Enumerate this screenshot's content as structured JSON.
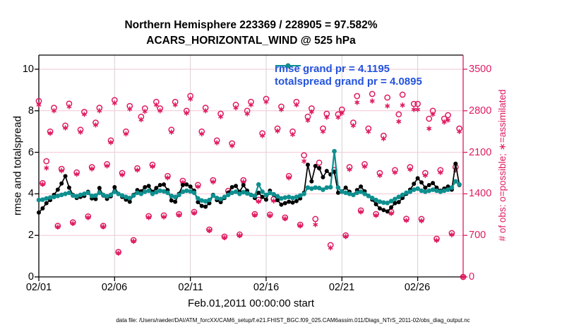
{
  "title": {
    "line1": "Northern Hemisphere 223369 / 228905 = 97.582%",
    "line2": "ACARS_HORIZONTAL_WIND @ 525 hPa"
  },
  "legend": {
    "text_color": "#2353dd",
    "items": [
      {
        "label": "rmse grand pr = 4.1195",
        "color": "#000000"
      },
      {
        "label": "totalspread grand pr = 4.0895",
        "color": "#0e8f8f"
      }
    ]
  },
  "axes": {
    "left": {
      "label": "rmse and totalspread",
      "ticks": [
        "0",
        "2",
        "4",
        "6",
        "8",
        "10"
      ],
      "tick_values": [
        0,
        2,
        4,
        6,
        8,
        10
      ],
      "color": "#000000"
    },
    "right": {
      "label": "# of obs: o=possible; ∗=assimilated",
      "ticks": [
        "0",
        "700",
        "1400",
        "2100",
        "2800",
        "3500"
      ],
      "tick_values": [
        0,
        700,
        1400,
        2100,
        2800,
        3500
      ],
      "color": "#df1a60"
    },
    "x": {
      "label": "Feb.01,2011 00:00:00 start",
      "ticks": [
        "02/01",
        "02/06",
        "02/11",
        "02/16",
        "02/21",
        "02/26"
      ],
      "tick_days": [
        0,
        5,
        10,
        15,
        20,
        25
      ],
      "range_days": [
        0,
        28
      ]
    }
  },
  "footer": "data file: /Users/raeder/DAI/ATM_forcXX/CAM6_setup/f.e21.FHIST_BGC.f09_025.CAM6assim.011/Diags_NTrS_2011-02/obs_diag_output.nc",
  "chart_data": {
    "type": "line",
    "title": "Northern Hemisphere 223369 / 228905 = 97.582% | ACARS_HORIZONTAL_WIND @ 525 hPa",
    "xlabel": "Feb.01,2011 00:00:00 start",
    "ylabel_left": "rmse and totalspread",
    "ylabel_right": "# of obs: o=possible; ∗=assimilated",
    "ylim_left": [
      0,
      10.7
    ],
    "ylim_right": [
      0,
      3745
    ],
    "x_start_day": 0,
    "x_step_days": 0.25,
    "grid": true,
    "legend_position": "top-center-inside",
    "series": [
      {
        "name": "rmse",
        "kind": "line",
        "marker": "filled-circle",
        "color": "#000000",
        "axis": "left",
        "grand_pr": 4.1195,
        "values": [
          3.1,
          3.3,
          3.55,
          3.7,
          3.95,
          4.2,
          4.5,
          4.85,
          4.3,
          3.95,
          3.8,
          3.85,
          3.9,
          4.1,
          3.78,
          3.75,
          4.28,
          3.92,
          3.76,
          3.88,
          4.32,
          4.0,
          3.85,
          3.72,
          3.62,
          3.95,
          4.18,
          4.12,
          4.32,
          4.38,
          4.1,
          4.28,
          4.42,
          4.45,
          4.18,
          3.68,
          3.62,
          4.0,
          4.42,
          4.45,
          4.35,
          4.15,
          3.6,
          3.42,
          3.38,
          3.55,
          3.95,
          3.7,
          3.6,
          3.8,
          4.05,
          4.32,
          4.38,
          4.1,
          4.42,
          4.15,
          3.95,
          3.8,
          4.05,
          3.85,
          3.72,
          4.15,
          3.95,
          3.7,
          3.48,
          3.55,
          3.62,
          3.58,
          3.65,
          3.78,
          4.05,
          5.4,
          4.6,
          5.34,
          5.24,
          4.8,
          5.1,
          4.93,
          5.07,
          4.05,
          4.12,
          4.3,
          4.1,
          3.95,
          4.18,
          4.35,
          4.12,
          3.9,
          3.72,
          3.5,
          3.3,
          3.22,
          3.15,
          3.35,
          3.55,
          3.6,
          3.8,
          4.0,
          4.2,
          4.48,
          4.75,
          4.55,
          4.3,
          4.42,
          4.52,
          4.3,
          4.15,
          4.25,
          4.35,
          4.2,
          5.45,
          4.42
        ]
      },
      {
        "name": "totalspread",
        "kind": "line",
        "marker": "filled-circle",
        "color": "#0e8f8f",
        "axis": "left",
        "grand_pr": 4.0895,
        "values": [
          3.7,
          3.72,
          3.78,
          3.82,
          3.85,
          3.9,
          3.95,
          4.0,
          4.05,
          3.92,
          3.88,
          3.95,
          4.0,
          4.05,
          3.9,
          3.92,
          4.05,
          3.95,
          3.88,
          3.95,
          4.1,
          4.0,
          3.92,
          3.85,
          3.8,
          3.92,
          4.05,
          4.0,
          4.1,
          4.15,
          4.0,
          4.08,
          4.15,
          4.12,
          4.05,
          3.9,
          3.85,
          3.95,
          4.1,
          4.15,
          4.12,
          4.05,
          3.78,
          3.68,
          3.64,
          3.7,
          3.92,
          3.8,
          3.75,
          3.85,
          3.95,
          4.05,
          4.1,
          4.0,
          4.08,
          4.02,
          3.95,
          3.9,
          4.45,
          4.1,
          3.95,
          4.05,
          3.98,
          3.88,
          3.78,
          3.82,
          3.85,
          3.8,
          3.85,
          3.92,
          4.0,
          4.3,
          4.25,
          4.3,
          4.28,
          4.2,
          4.3,
          4.32,
          6.05,
          4.3,
          4.1,
          4.05,
          4.0,
          3.95,
          4.05,
          4.1,
          4.0,
          3.9,
          3.8,
          3.7,
          3.62,
          3.58,
          3.56,
          3.65,
          3.75,
          3.85,
          3.95,
          4.05,
          4.1,
          4.2,
          4.25,
          4.15,
          4.1,
          4.15,
          4.2,
          4.15,
          4.1,
          4.15,
          4.2,
          4.3,
          4.6,
          4.45
        ]
      },
      {
        "name": "possible",
        "kind": "scatter",
        "marker": "open-circle",
        "color": "#df1a60",
        "axis": "right",
        "values": [
          2965,
          1580,
          1950,
          2450,
          2850,
          860,
          1820,
          2550,
          2920,
          920,
          1760,
          2480,
          2780,
          1020,
          1850,
          2600,
          2850,
          860,
          1900,
          2300,
          2980,
          420,
          1750,
          2450,
          2880,
          620,
          1830,
          2700,
          2840,
          1024,
          1890,
          2950,
          2840,
          1036,
          1700,
          2480,
          2950,
          1059,
          1620,
          2800,
          3050,
          1095,
          1550,
          2450,
          2850,
          798,
          1630,
          2300,
          2750,
          679,
          1450,
          2250,
          2900,
          714,
          1630,
          2800,
          2950,
          1059,
          1300,
          2420,
          3000,
          1050,
          1310,
          2500,
          2870,
          1000,
          1700,
          2450,
          2950,
          880,
          2050,
          2700,
          2840,
          976,
          1925,
          2500,
          2750,
          536,
          1800,
          2740,
          2820,
          700,
          1850,
          2600,
          3048,
          1120,
          1900,
          2500,
          3083,
          1060,
          1750,
          2380,
          3023,
          1095,
          1800,
          2740,
          3071,
          980,
          1850,
          2916,
          2916,
          976,
          1750,
          2666,
          2800,
          643,
          1800,
          2666,
          2726,
          738,
          1850,
          2500,
          0
        ]
      },
      {
        "name": "assimilated",
        "kind": "scatter",
        "marker": "asterisk",
        "color": "#df1a60",
        "axis": "right",
        "values": [
          2900,
          1560,
          1835,
          2420,
          2800,
          840,
          1790,
          2510,
          2870,
          900,
          1730,
          2440,
          2740,
          1000,
          1820,
          2560,
          2800,
          845,
          1870,
          2265,
          2930,
          400,
          1720,
          2410,
          2830,
          600,
          1800,
          2650,
          2790,
          1000,
          1860,
          2900,
          2800,
          1010,
          1670,
          2440,
          2900,
          1040,
          1590,
          2760,
          3000,
          1075,
          1520,
          2410,
          2800,
          780,
          1600,
          2260,
          2700,
          660,
          1420,
          2210,
          2850,
          695,
          1600,
          2750,
          2900,
          1040,
          1270,
          2380,
          2950,
          1030,
          1280,
          2460,
          2820,
          980,
          1670,
          2400,
          2900,
          860,
          1950,
          2640,
          2780,
          880,
          1835,
          2450,
          2690,
          490,
          1760,
          2690,
          2760,
          680,
          1810,
          2550,
          2940,
          1095,
          1860,
          2450,
          2964,
          1035,
          1710,
          2330,
          2880,
          1070,
          1760,
          2619,
          2894,
          950,
          1810,
          2821,
          2821,
          945,
          1710,
          2500,
          2740,
          615,
          1760,
          2610,
          2642,
          710,
          1800,
          2450,
          0
        ]
      }
    ]
  },
  "plot_colors": {
    "obs_marker": "#df1a60",
    "grid_horizontal": "#f2c6d4",
    "grid_vertical": "#d8d0d2",
    "spine_left_bottom_top": "#000000",
    "spine_right": "#df1a60"
  }
}
